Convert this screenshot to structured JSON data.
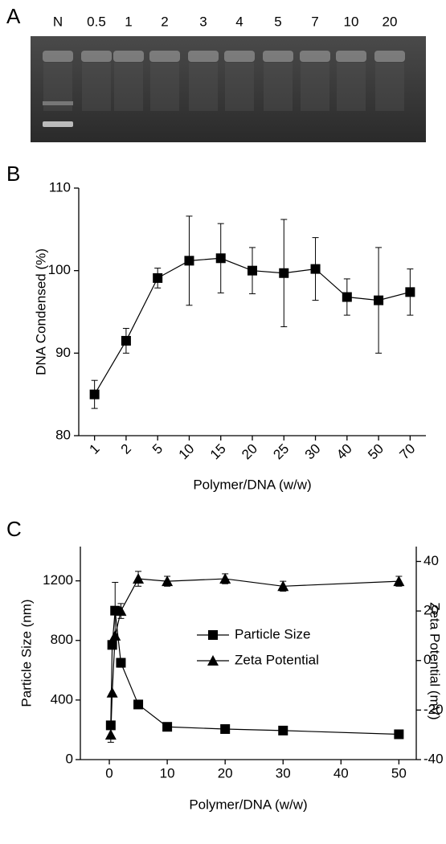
{
  "chart_data": [
    {
      "type": "gel",
      "panel": "A",
      "categories": [
        "N",
        "0.5",
        "1",
        "2",
        "3",
        "4",
        "5",
        "7",
        "10",
        "20"
      ]
    },
    {
      "type": "line",
      "panel": "B",
      "y_label": "DNA Condensed (%)",
      "x_label": "Polymer/DNA (w/w)",
      "categories": [
        "1",
        "2",
        "5",
        "10",
        "15",
        "20",
        "25",
        "30",
        "40",
        "50",
        "70"
      ],
      "values": [
        85.0,
        91.5,
        99.1,
        101.2,
        101.5,
        100.0,
        99.7,
        100.2,
        96.8,
        96.4,
        97.4
      ],
      "errors": [
        1.7,
        1.5,
        1.2,
        5.4,
        4.2,
        2.8,
        6.5,
        3.8,
        2.2,
        6.4,
        2.8
      ],
      "color": "#000000",
      "ylim": [
        80,
        110
      ],
      "yticks": [
        80,
        90,
        100,
        110
      ]
    },
    {
      "type": "dual-line",
      "panel": "C",
      "y_label": "Particle Size (nm)",
      "y2_label": "Zeta Potential (mV)",
      "x_label": "Polymer/DNA (w/w)",
      "xlim": [
        -5,
        53
      ],
      "xticks": [
        0,
        10,
        20,
        30,
        40,
        50
      ],
      "ylim": [
        0,
        1430
      ],
      "yticks": [
        0,
        400,
        800,
        1200
      ],
      "y2lim": [
        -40,
        46
      ],
      "y2ticks": [
        -40,
        -20,
        0,
        20,
        40
      ],
      "legend": "center",
      "series": [
        {
          "name": "Particle Size",
          "marker": "square",
          "color": "#000000",
          "x": [
            0.25,
            0.5,
            1,
            2,
            5,
            10,
            20,
            30,
            50
          ],
          "values": [
            230,
            770,
            1000,
            650,
            370,
            220,
            205,
            195,
            170
          ],
          "errors": [
            null,
            null,
            190,
            30,
            null,
            null,
            null,
            null,
            null
          ]
        },
        {
          "name": "Zeta Potential",
          "marker": "triangle",
          "color": "#000000",
          "axis": "y2",
          "x": [
            0.25,
            0.5,
            1,
            2,
            5,
            10,
            20,
            30,
            50
          ],
          "values": [
            -30,
            -13,
            10,
            20,
            33,
            32,
            33,
            30,
            32
          ],
          "errors": [
            3,
            null,
            null,
            3,
            3,
            2,
            2,
            2,
            2
          ]
        }
      ]
    }
  ]
}
